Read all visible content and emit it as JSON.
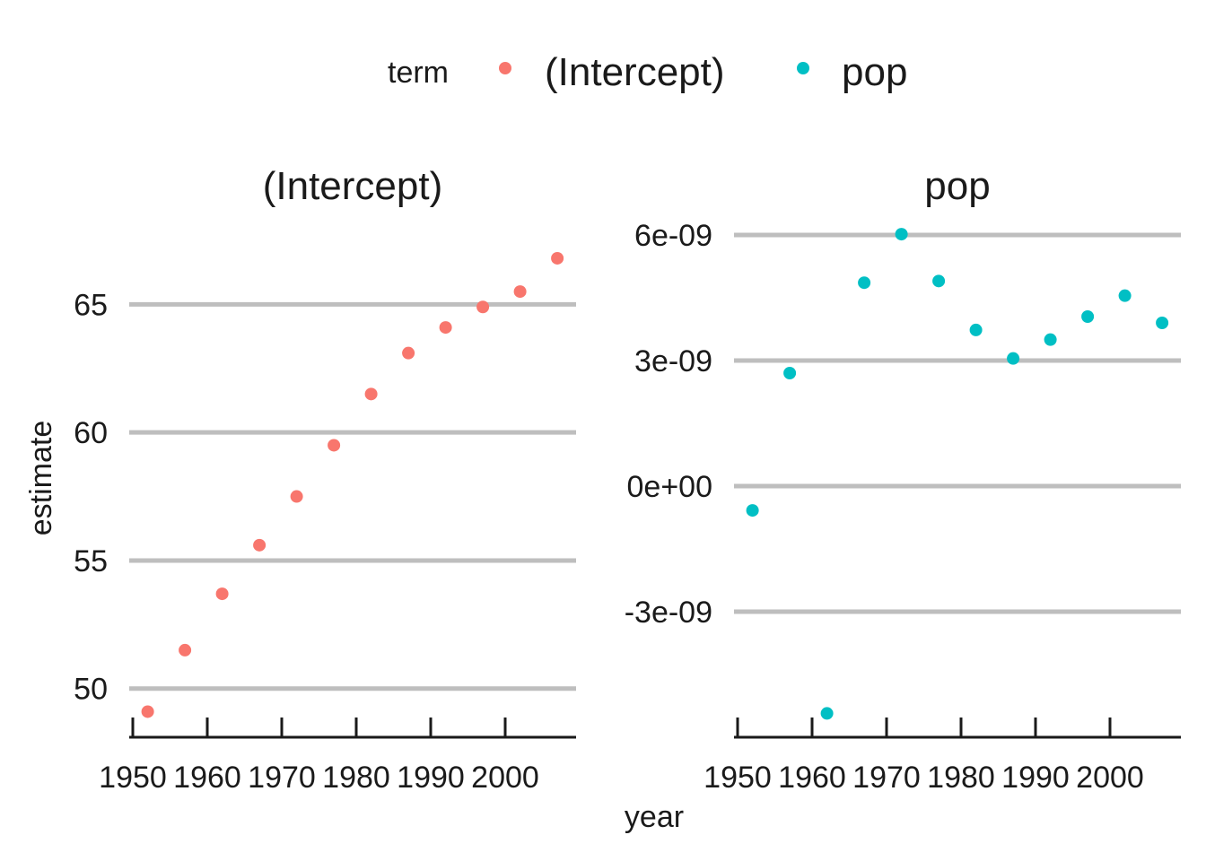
{
  "chart_data": {
    "type": "scatter",
    "legend": {
      "title": "term",
      "placement": "top",
      "entries": [
        {
          "label": "(Intercept)",
          "color": "#F8766D"
        },
        {
          "label": "pop",
          "color": "#00BFC4"
        }
      ]
    },
    "xlabel": "year",
    "ylabel": "estimate",
    "x_ticks": [
      1950,
      1960,
      1970,
      1980,
      1990,
      2000
    ],
    "xlim": [
      1950,
      2010
    ],
    "panels": [
      {
        "title": "(Intercept)",
        "color": "#F8766D",
        "ylim": [
          48.1,
          68.2
        ],
        "y_ticks": [
          {
            "value": 50,
            "label": "50"
          },
          {
            "value": 55,
            "label": "55"
          },
          {
            "value": 60,
            "label": "60"
          },
          {
            "value": 65,
            "label": "65"
          }
        ],
        "x": [
          1952,
          1957,
          1962,
          1967,
          1972,
          1977,
          1982,
          1987,
          1992,
          1997,
          2002,
          2007
        ],
        "y": [
          49.1,
          51.5,
          53.7,
          55.6,
          57.5,
          59.5,
          61.5,
          63.1,
          64.1,
          64.9,
          65.5,
          66.8
        ]
      },
      {
        "title": "pop",
        "color": "#00BFC4",
        "ylim": [
          -6e-09,
          6.3e-09
        ],
        "y_ticks": [
          {
            "value": -3e-09,
            "label": "-3e-09"
          },
          {
            "value": 0,
            "label": "0e+00"
          },
          {
            "value": 3e-09,
            "label": "3e-09"
          },
          {
            "value": 6e-09,
            "label": "6e-09"
          }
        ],
        "x": [
          1952,
          1957,
          1962,
          1967,
          1972,
          1977,
          1982,
          1987,
          1992,
          1997,
          2002,
          2007
        ],
        "y": [
          -5.8e-10,
          2.7e-09,
          -5.43e-09,
          4.86e-09,
          6.02e-09,
          4.9e-09,
          3.73e-09,
          3.05e-09,
          3.5e-09,
          4.05e-09,
          4.55e-09,
          3.9e-09
        ]
      }
    ],
    "grid": "horizontal-major"
  }
}
